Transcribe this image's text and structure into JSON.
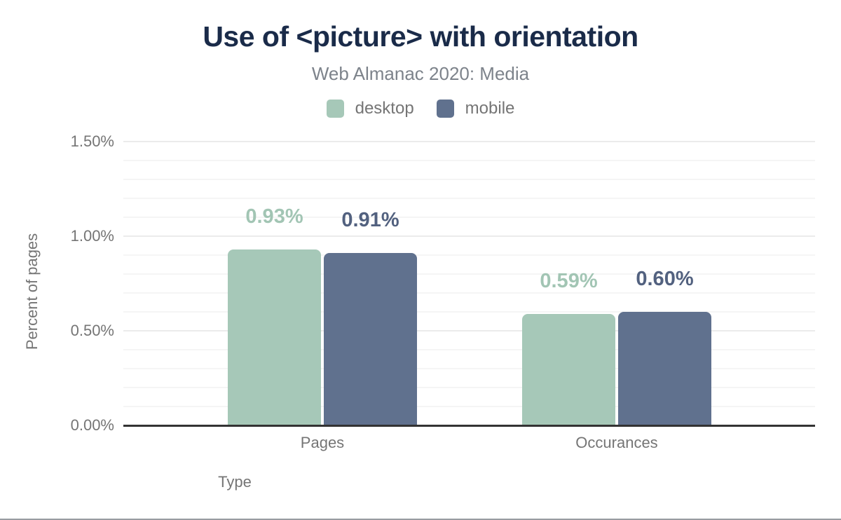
{
  "header": {
    "title": "Use of <picture> with orientation",
    "subtitle": "Web Almanac 2020: Media",
    "title_color": "#1a2b49"
  },
  "chart_data": {
    "type": "bar",
    "title": "Use of <picture> with orientation",
    "subtitle": "Web Almanac 2020: Media",
    "categories": [
      "Pages",
      "Occurances"
    ],
    "series": [
      {
        "name": "desktop",
        "values": [
          0.93,
          0.59
        ],
        "data_labels": [
          "0.93%",
          "0.59%"
        ],
        "color": "#a6c8b8",
        "label_color": "#a2c5b4"
      },
      {
        "name": "mobile",
        "values": [
          0.91,
          0.6
        ],
        "data_labels": [
          "0.91%",
          "0.60%"
        ],
        "color": "#60718e",
        "label_color": "#52617f"
      }
    ],
    "xlabel": "Type",
    "ylabel": "Percent of pages",
    "ylim": [
      0,
      1.5
    ],
    "yticks": [
      {
        "value": 0.0,
        "label": "0.00%"
      },
      {
        "value": 0.5,
        "label": "0.50%"
      },
      {
        "value": 1.0,
        "label": "1.00%"
      },
      {
        "value": 1.5,
        "label": "1.50%"
      }
    ],
    "minor_tick_step": 0.1,
    "grid": "horizontal",
    "legend_position": "top"
  }
}
